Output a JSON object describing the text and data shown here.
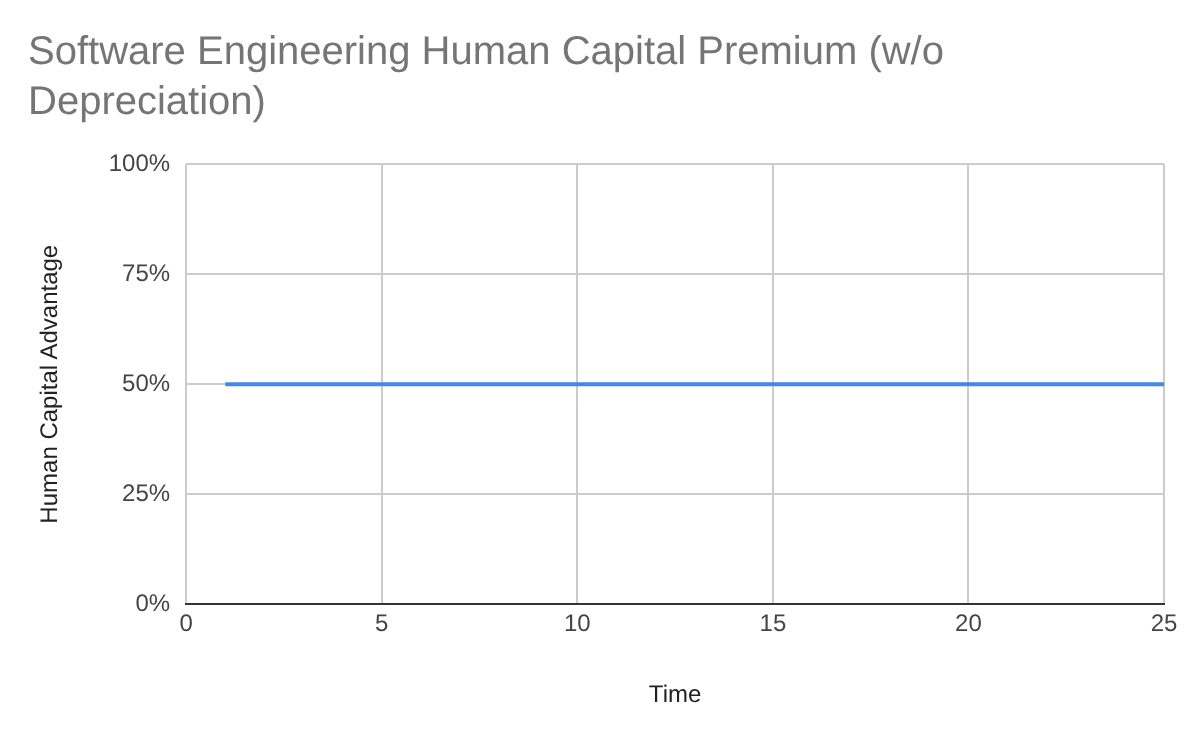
{
  "chart_data": {
    "type": "line",
    "title": "Software Engineering Human Capital Premium (w/o Depreciation)",
    "xlabel": "Time",
    "ylabel": "Human Capital Advantage",
    "x": [
      1,
      25
    ],
    "series": [
      {
        "color": "#4285f4",
        "values": [
          50,
          50
        ]
      }
    ],
    "xlim": [
      0,
      25
    ],
    "xticks": [
      0,
      5,
      10,
      15,
      20,
      25
    ],
    "ylim": [
      0,
      100
    ],
    "yticks": [
      {
        "value": 0,
        "label": "0%"
      },
      {
        "value": 25,
        "label": "25%"
      },
      {
        "value": 50,
        "label": "50%"
      },
      {
        "value": 75,
        "label": "75%"
      },
      {
        "value": 100,
        "label": "100%"
      }
    ],
    "grid": true,
    "legend": false,
    "marker": "none",
    "line_style": "solid"
  }
}
